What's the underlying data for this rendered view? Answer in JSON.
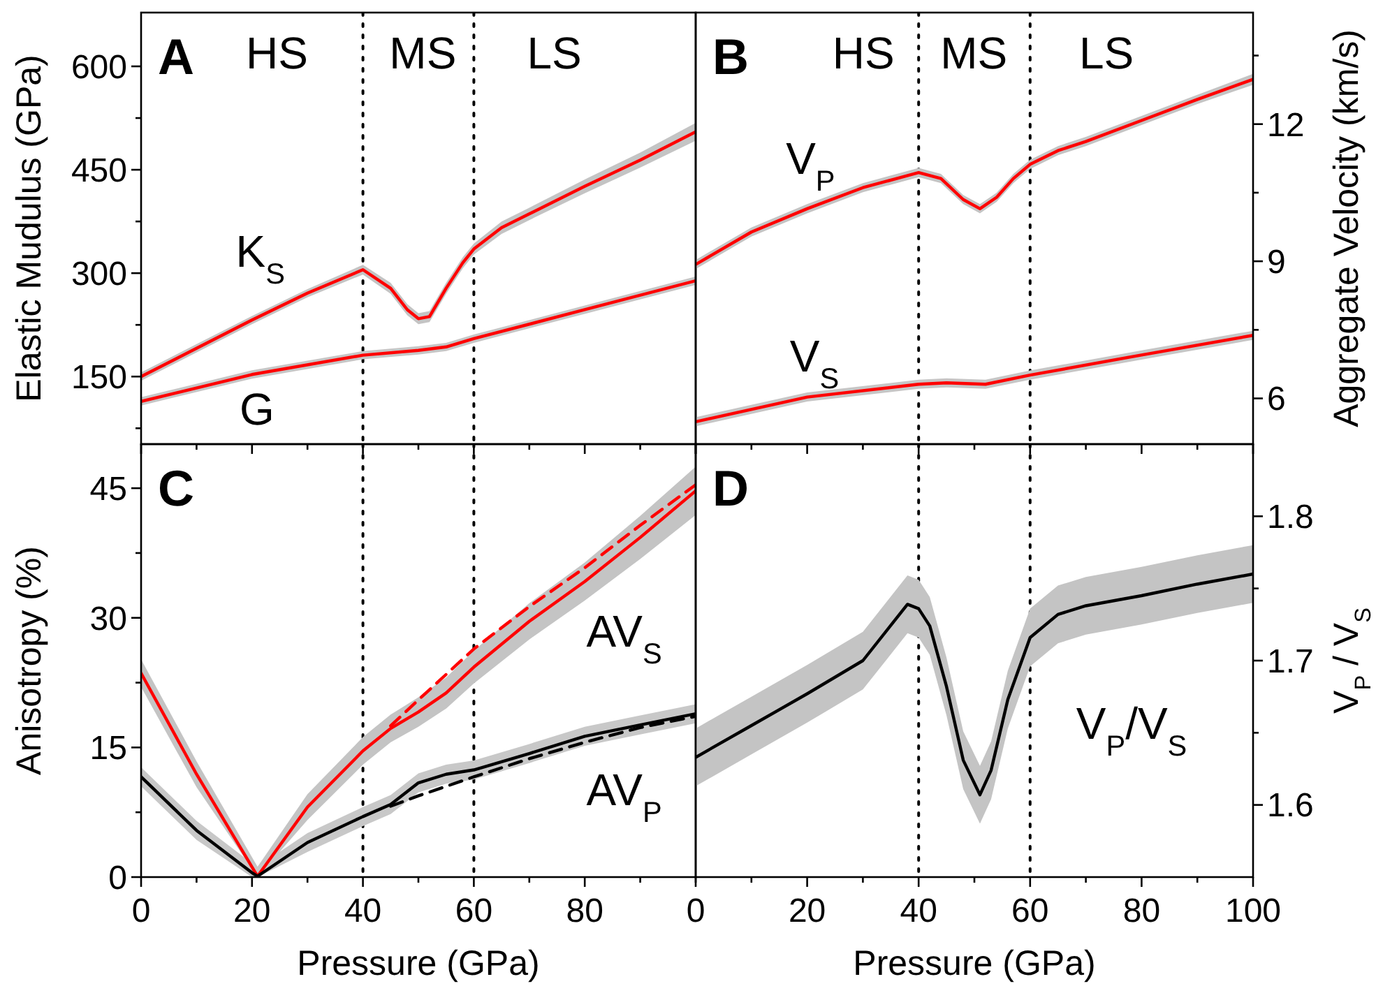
{
  "chart_data": [
    {
      "type": "line",
      "title": "A",
      "ylabel": "Elastic Mudulus (GPa)",
      "xlim": [
        0,
        100
      ],
      "ylim": [
        52,
        678
      ],
      "tick_labels": "y",
      "xticks": [
        0,
        {
          "value": 10,
          "label": null
        },
        20,
        {
          "value": 30,
          "label": null
        },
        40,
        {
          "value": 50,
          "label": null
        },
        60,
        {
          "value": 70,
          "label": null
        },
        80,
        {
          "value": 90,
          "label": null
        },
        100
      ],
      "yticks": [
        {
          "value": 75,
          "label": null
        },
        150,
        {
          "value": 225,
          "label": null
        },
        300,
        {
          "value": 375,
          "label": null
        },
        450,
        {
          "value": 525,
          "label": null
        },
        600
      ],
      "ref_lines": [
        {
          "axis": "x",
          "value": 40,
          "line_style": "dotted"
        },
        {
          "axis": "x",
          "value": 60,
          "line_style": "dotted"
        }
      ],
      "annotations": [
        "HS",
        "MS",
        "LS",
        "K$_{S}$",
        "G"
      ],
      "series": [
        {
          "color": "#ff0000",
          "x": [
            0,
            10,
            20,
            30,
            40,
            45,
            48,
            50,
            52,
            55,
            58,
            60,
            65,
            70,
            80,
            90,
            100
          ],
          "values": [
            150,
            191,
            232,
            271,
            305,
            278,
            247,
            234,
            237,
            278,
            315,
            335,
            366,
            386,
            426,
            464,
            505
          ],
          "lower": [
            144,
            185,
            226,
            265,
            298,
            270,
            239,
            226,
            229,
            270,
            307,
            327,
            357,
            377,
            416,
            453,
            492
          ],
          "upper": [
            156,
            197,
            238,
            277,
            312,
            286,
            255,
            242,
            245,
            286,
            323,
            343,
            375,
            395,
            436,
            475,
            518
          ]
        },
        {
          "color": "#ff0000",
          "x": [
            0,
            20,
            40,
            50,
            55,
            60,
            80,
            100
          ],
          "values": [
            114,
            153,
            181,
            188,
            193,
            205,
            247,
            289
          ],
          "lower": [
            108,
            147,
            175,
            182,
            187,
            199,
            241,
            283
          ],
          "upper": [
            120,
            159,
            187,
            194,
            199,
            211,
            253,
            295
          ]
        }
      ]
    },
    {
      "type": "line",
      "title": "B",
      "y2label": "Aggregate Velocity (km/s)",
      "xlim": [
        0,
        100
      ],
      "y2lim": [
        5.0,
        14.44
      ],
      "tick_labels": "y",
      "xticks": [
        0,
        {
          "value": 10,
          "label": null
        },
        20,
        {
          "value": 30,
          "label": null
        },
        40,
        {
          "value": 50,
          "label": null
        },
        60,
        {
          "value": 70,
          "label": null
        },
        80,
        {
          "value": 90,
          "label": null
        },
        100
      ],
      "y2ticks": [
        6,
        {
          "value": 7.5,
          "label": null
        },
        9,
        {
          "value": 10.5,
          "label": null
        },
        12,
        {
          "value": 13.5,
          "label": null
        }
      ],
      "ref_lines": [
        {
          "axis": "x",
          "value": 40,
          "line_style": "dotted"
        },
        {
          "axis": "x",
          "value": 60,
          "line_style": "dotted"
        }
      ],
      "annotations": [
        "HS",
        "MS",
        "LS",
        "V$_{P}$",
        "V$_{S}$"
      ],
      "series": [
        {
          "color": "#ff0000",
          "axis": "y2",
          "x": [
            0,
            10,
            20,
            30,
            40,
            44,
            48,
            51,
            54,
            57,
            60,
            65,
            70,
            80,
            90,
            100
          ],
          "values": [
            8.93,
            9.64,
            10.15,
            10.61,
            10.94,
            10.81,
            10.35,
            10.15,
            10.4,
            10.81,
            11.12,
            11.42,
            11.62,
            12.08,
            12.54,
            12.98
          ],
          "lower": [
            8.83,
            9.54,
            10.05,
            10.51,
            10.84,
            10.71,
            10.25,
            10.05,
            10.3,
            10.71,
            11.02,
            11.32,
            11.52,
            11.98,
            12.44,
            12.86
          ],
          "upper": [
            9.03,
            9.74,
            10.25,
            10.71,
            11.04,
            10.91,
            10.45,
            10.25,
            10.5,
            10.91,
            11.22,
            11.52,
            11.72,
            12.18,
            12.64,
            13.1
          ]
        },
        {
          "color": "#ff0000",
          "axis": "y2",
          "x": [
            0,
            20,
            40,
            45,
            52,
            60,
            80,
            100
          ],
          "values": [
            5.49,
            6.03,
            6.31,
            6.34,
            6.31,
            6.51,
            6.95,
            7.38
          ],
          "lower": [
            5.39,
            5.93,
            6.21,
            6.24,
            6.21,
            6.41,
            6.85,
            7.28
          ],
          "upper": [
            5.59,
            6.13,
            6.41,
            6.44,
            6.41,
            6.61,
            7.05,
            7.48
          ]
        }
      ]
    },
    {
      "type": "line",
      "title": "C",
      "xlabel": "Pressure (GPa)",
      "ylabel": "Anisotropy (%)",
      "xlim": [
        0,
        100
      ],
      "ylim": [
        0,
        50.1
      ],
      "xticks": [
        0,
        {
          "value": 10,
          "label": null
        },
        20,
        {
          "value": 30,
          "label": null
        },
        40,
        {
          "value": 50,
          "label": null
        },
        60,
        {
          "value": 70,
          "label": null
        },
        80,
        {
          "value": 90,
          "label": null
        },
        {
          "value": 100,
          "label": null
        }
      ],
      "yticks": [
        0,
        {
          "value": 7.5,
          "label": null
        },
        15,
        {
          "value": 22.5,
          "label": null
        },
        30,
        {
          "value": 37.5,
          "label": null
        },
        45
      ],
      "ref_lines": [
        {
          "axis": "x",
          "value": 40,
          "line_style": "dotted"
        },
        {
          "axis": "x",
          "value": 60,
          "line_style": "dotted"
        }
      ],
      "annotations": [
        "AV$_{S}$",
        "AV$_{P}$"
      ],
      "series": [
        {
          "color": "#ff0000",
          "x": [
            0,
            10,
            21,
            30,
            40,
            45,
            50,
            55,
            60,
            70,
            80,
            90,
            100
          ],
          "values": [
            23.6,
            11.9,
            0.1,
            8.1,
            14.6,
            17.2,
            19.1,
            21.3,
            24.3,
            29.6,
            34.2,
            39.3,
            44.7
          ],
          "lower": [
            22.0,
            10.4,
            0,
            6.6,
            13.0,
            15.6,
            17.4,
            19.5,
            22.4,
            27.5,
            32.0,
            36.8,
            41.9
          ],
          "upper": [
            25.2,
            13.4,
            1.2,
            9.6,
            16.2,
            18.8,
            20.8,
            23.1,
            26.2,
            31.7,
            36.4,
            41.8,
            47.5
          ]
        },
        {
          "color": "#ff0000",
          "line_style": "dashed",
          "x": [
            45,
            50,
            60,
            70,
            80,
            90,
            100
          ],
          "values": [
            17.5,
            20.5,
            26.4,
            31.3,
            35.8,
            40.7,
            45.4
          ]
        },
        {
          "color": "#000000",
          "x": [
            0,
            10,
            20,
            21,
            30,
            40,
            45,
            50,
            55,
            60,
            70,
            80,
            90,
            100
          ],
          "values": [
            11.6,
            5.4,
            0.5,
            0.1,
            4.0,
            7.0,
            8.4,
            10.9,
            11.9,
            12.4,
            14.3,
            16.3,
            17.6,
            18.9
          ],
          "lower": [
            10.5,
            4.3,
            0,
            0,
            2.9,
            5.9,
            7.3,
            9.8,
            10.8,
            11.3,
            13.2,
            15.2,
            16.5,
            17.8
          ],
          "upper": [
            12.7,
            6.5,
            1.6,
            1.2,
            5.1,
            8.1,
            9.5,
            12.0,
            13.0,
            13.5,
            15.4,
            17.4,
            18.7,
            20.0
          ]
        },
        {
          "color": "#000000",
          "line_style": "dashed",
          "x": [
            45,
            50,
            60,
            70,
            80,
            90,
            100
          ],
          "values": [
            8.2,
            9.4,
            11.6,
            13.7,
            15.6,
            17.3,
            18.6
          ]
        }
      ]
    },
    {
      "type": "line",
      "title": "D",
      "xlabel": "Pressure (GPa)",
      "y2label": "V$_{P}$ / V$_{S}$",
      "xlim": [
        0,
        100
      ],
      "y2lim": [
        1.55,
        1.85
      ],
      "xticks": [
        0,
        {
          "value": 10,
          "label": null
        },
        20,
        {
          "value": 30,
          "label": null
        },
        40,
        {
          "value": 50,
          "label": null
        },
        60,
        {
          "value": 70,
          "label": null
        },
        80,
        {
          "value": 90,
          "label": null
        },
        100
      ],
      "y2ticks": [
        1.6,
        {
          "value": 1.65,
          "label": null
        },
        1.7,
        {
          "value": 1.75,
          "label": null
        },
        1.8
      ],
      "ref_lines": [
        {
          "axis": "x",
          "value": 40,
          "line_style": "dotted"
        },
        {
          "axis": "x",
          "value": 60,
          "line_style": "dotted"
        }
      ],
      "annotations": [
        "V$_{P}$/V$_{S}$"
      ],
      "series": [
        {
          "color": "#000000",
          "axis": "y2",
          "x": [
            0,
            10,
            20,
            30,
            38,
            40,
            42,
            45,
            48,
            51,
            53,
            56,
            60,
            65,
            70,
            80,
            90,
            100
          ],
          "values": [
            1.633,
            1.655,
            1.677,
            1.7,
            1.739,
            1.736,
            1.724,
            1.682,
            1.631,
            1.607,
            1.624,
            1.673,
            1.716,
            1.732,
            1.738,
            1.745,
            1.753,
            1.76
          ],
          "lower": [
            1.613,
            1.635,
            1.657,
            1.68,
            1.719,
            1.716,
            1.704,
            1.662,
            1.611,
            1.587,
            1.604,
            1.653,
            1.696,
            1.712,
            1.718,
            1.725,
            1.733,
            1.74
          ],
          "upper": [
            1.653,
            1.675,
            1.697,
            1.72,
            1.759,
            1.756,
            1.744,
            1.702,
            1.651,
            1.627,
            1.644,
            1.693,
            1.736,
            1.752,
            1.758,
            1.765,
            1.773,
            1.78
          ]
        }
      ]
    }
  ]
}
